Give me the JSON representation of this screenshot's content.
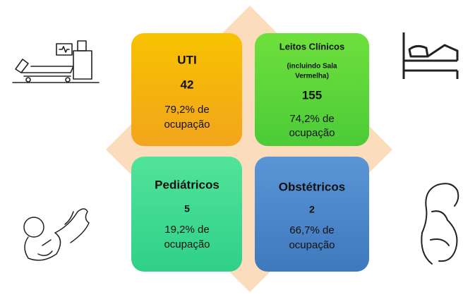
{
  "tiles": [
    {
      "title": "UTI",
      "count": "42",
      "occupancy_lines": [
        "79,2% de",
        "ocupação"
      ]
    },
    {
      "title": "Leitos Clínicos",
      "subtitle_lines": [
        "(incluindo Sala",
        "Vermelha)"
      ],
      "count": "155",
      "occupancy_lines": [
        "74,2% de",
        "ocupação"
      ]
    },
    {
      "title": "Pediátricos",
      "count": "5",
      "occupancy_lines": [
        "19,2% de",
        "ocupação"
      ]
    },
    {
      "title": "Obstétricos",
      "count": "2",
      "occupancy_lines": [
        "66,7% de",
        "ocupação"
      ]
    }
  ]
}
